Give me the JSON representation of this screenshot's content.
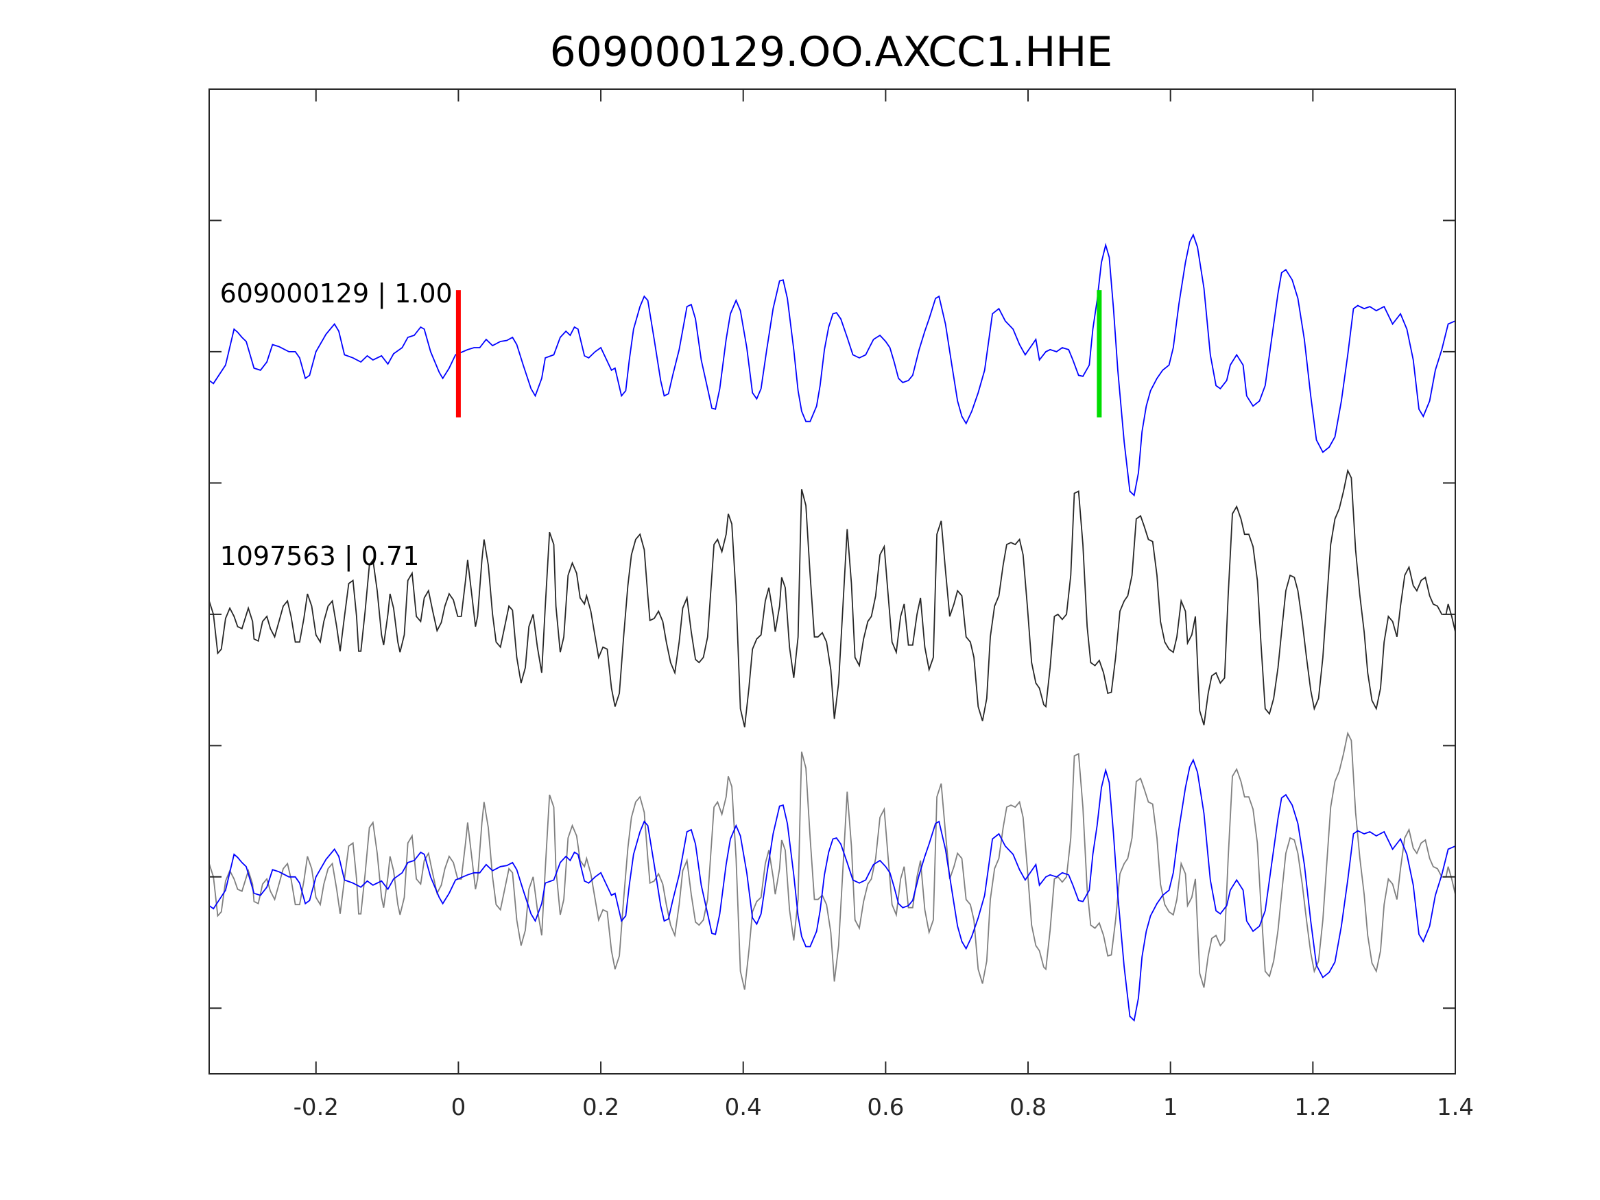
{
  "chart_data": {
    "type": "line",
    "title": "609000129.OO.AXCC1.HHE",
    "xlabel": "",
    "ylabel": "",
    "xlim": [
      -0.35,
      1.4
    ],
    "ylim": [
      0,
      960
    ],
    "xticks": [
      -0.2,
      0,
      0.2,
      0.4,
      0.6,
      0.8,
      1,
      1.2,
      1.4
    ],
    "xtick_labels": [
      "-0.2",
      "0",
      "0.2",
      "0.4",
      "0.6",
      "0.8",
      "1",
      "1.2",
      "1.4"
    ],
    "yticks": [
      64,
      192,
      320,
      448,
      576,
      704,
      832
    ],
    "grid": false,
    "colors": {
      "template": "#0000ff",
      "match": "#262626",
      "match_overlay": "#7f7f7f",
      "pick_p": "#ff0000",
      "pick_s": "#00dd00",
      "axis": "#262626"
    },
    "labels": [
      {
        "text": "609000129 | 1.00",
        "t": -0.335,
        "y": 752
      },
      {
        "text": "1097563 | 0.71",
        "t": -0.335,
        "y": 496
      }
    ],
    "picks": [
      {
        "name": "P",
        "t": 0.0,
        "y_range": [
          640,
          764
        ],
        "color": "#ff0000"
      },
      {
        "name": "S",
        "t": 0.9,
        "y_range": [
          640,
          764
        ],
        "color": "#00dd00"
      }
    ],
    "series": [
      {
        "name": "609000129 template",
        "offset": 704,
        "overlay_offset": 192,
        "t": [
          -0.35,
          -0.344,
          -0.327,
          -0.315,
          -0.31,
          -0.304,
          -0.298,
          -0.287,
          -0.278,
          -0.269,
          -0.261,
          -0.252,
          -0.238,
          -0.229,
          -0.223,
          -0.215,
          -0.209,
          -0.2,
          -0.186,
          -0.174,
          -0.168,
          -0.16,
          -0.148,
          -0.137,
          -0.128,
          -0.12,
          -0.108,
          -0.099,
          -0.091,
          -0.079,
          -0.071,
          -0.062,
          -0.053,
          -0.048,
          -0.039,
          -0.027,
          -0.022,
          -0.013,
          -0.004,
          0.013,
          0.022,
          0.03,
          0.039,
          0.048,
          0.059,
          0.068,
          0.076,
          0.082,
          0.091,
          0.102,
          0.108,
          0.117,
          0.122,
          0.134,
          0.143,
          0.151,
          0.157,
          0.163,
          0.168,
          0.177,
          0.183,
          0.192,
          0.2,
          0.215,
          0.22,
          0.229,
          0.235,
          0.24,
          0.246,
          0.255,
          0.261,
          0.266,
          0.275,
          0.284,
          0.289,
          0.295,
          0.301,
          0.31,
          0.321,
          0.327,
          0.333,
          0.341,
          0.35,
          0.356,
          0.361,
          0.367,
          0.376,
          0.382,
          0.39,
          0.396,
          0.405,
          0.413,
          0.419,
          0.425,
          0.433,
          0.442,
          0.451,
          0.456,
          0.462,
          0.471,
          0.477,
          0.482,
          0.488,
          0.494,
          0.503,
          0.508,
          0.514,
          0.52,
          0.526,
          0.531,
          0.537,
          0.546,
          0.554,
          0.563,
          0.572,
          0.577,
          0.583,
          0.592,
          0.6,
          0.606,
          0.612,
          0.618,
          0.624,
          0.632,
          0.638,
          0.647,
          0.655,
          0.661,
          0.67,
          0.675,
          0.684,
          0.693,
          0.701,
          0.707,
          0.713,
          0.721,
          0.73,
          0.739,
          0.744,
          0.75,
          0.759,
          0.768,
          0.779,
          0.788,
          0.796,
          0.805,
          0.811,
          0.816,
          0.825,
          0.831,
          0.84,
          0.848,
          0.857,
          0.863,
          0.871,
          0.877,
          0.886,
          0.891,
          0.897,
          0.903,
          0.909,
          0.914,
          0.92,
          0.926,
          0.935,
          0.943,
          0.949,
          0.955,
          0.96,
          0.966,
          0.972,
          0.981,
          0.989,
          0.998,
          1.004,
          1.012,
          1.021,
          1.027,
          1.032,
          1.038,
          1.047,
          1.056,
          1.064,
          1.07,
          1.079,
          1.084,
          1.093,
          1.102,
          1.107,
          1.116,
          1.125,
          1.133,
          1.142,
          1.151,
          1.156,
          1.162,
          1.171,
          1.179,
          1.188,
          1.197,
          1.205,
          1.214,
          1.223,
          1.231,
          1.24,
          1.249,
          1.257,
          1.263,
          1.272,
          1.28,
          1.289,
          1.3,
          1.312,
          1.323,
          1.332,
          1.341,
          1.349,
          1.355,
          1.364,
          1.372,
          1.381,
          1.39,
          1.4
        ],
        "amp": [
          -28,
          -31,
          -13,
          22,
          19,
          14,
          10,
          -16,
          -18,
          -10,
          7,
          5,
          0,
          0,
          -6,
          -26,
          -23,
          0,
          17,
          27,
          20,
          -3,
          -6,
          -10,
          -4,
          -8,
          -4,
          -12,
          -2,
          4,
          14,
          16,
          24,
          22,
          0,
          -20,
          -26,
          -16,
          -3,
          2,
          4,
          4,
          12,
          6,
          10,
          11,
          14,
          7,
          -13,
          -36,
          -43,
          -26,
          -6,
          -3,
          14,
          20,
          16,
          24,
          22,
          -4,
          -6,
          0,
          4,
          -18,
          -16,
          -43,
          -38,
          -8,
          22,
          44,
          54,
          50,
          12,
          -28,
          -43,
          -41,
          -23,
          2,
          44,
          46,
          32,
          -8,
          -36,
          -55,
          -56,
          -36,
          12,
          37,
          50,
          40,
          4,
          -40,
          -46,
          -36,
          2,
          42,
          69,
          70,
          52,
          2,
          -38,
          -58,
          -68,
          -68,
          -53,
          -33,
          2,
          24,
          37,
          38,
          32,
          14,
          -3,
          -6,
          -3,
          4,
          12,
          16,
          10,
          4,
          -10,
          -26,
          -30,
          -28,
          -23,
          2,
          20,
          32,
          52,
          54,
          27,
          -13,
          -48,
          -63,
          -70,
          -58,
          -40,
          -18,
          7,
          37,
          42,
          30,
          22,
          7,
          -3,
          6,
          12,
          -8,
          0,
          2,
          0,
          4,
          2,
          -8,
          -23,
          -24,
          -13,
          22,
          50,
          87,
          104,
          92,
          42,
          -18,
          -88,
          -136,
          -140,
          -118,
          -78,
          -53,
          -38,
          -26,
          -18,
          -13,
          4,
          47,
          87,
          107,
          114,
          102,
          62,
          -3,
          -33,
          -36,
          -28,
          -13,
          -3,
          -13,
          -43,
          -53,
          -48,
          -33,
          12,
          57,
          77,
          80,
          70,
          52,
          12,
          -43,
          -86,
          -98,
          -93,
          -83,
          -48,
          -3,
          42,
          45,
          42,
          44,
          40,
          44,
          27,
          37,
          22,
          -8,
          -56,
          -63,
          -48,
          -18,
          2,
          27,
          30
        ]
      },
      {
        "name": "1097563 match",
        "offset": 448,
        "overlay_offset": 192,
        "t": [
          -0.35,
          -0.344,
          -0.338,
          -0.333,
          -0.327,
          -0.321,
          -0.315,
          -0.31,
          -0.304,
          -0.295,
          -0.289,
          -0.287,
          -0.281,
          -0.275,
          -0.269,
          -0.264,
          -0.258,
          -0.252,
          -0.246,
          -0.24,
          -0.235,
          -0.229,
          -0.223,
          -0.217,
          -0.212,
          -0.206,
          -0.2,
          -0.194,
          -0.189,
          -0.183,
          -0.177,
          -0.171,
          -0.166,
          -0.16,
          -0.154,
          -0.148,
          -0.143,
          -0.14,
          -0.137,
          -0.131,
          -0.125,
          -0.12,
          -0.114,
          -0.108,
          -0.105,
          -0.099,
          -0.096,
          -0.091,
          -0.085,
          -0.082,
          -0.076,
          -0.071,
          -0.065,
          -0.059,
          -0.053,
          -0.048,
          -0.042,
          -0.036,
          -0.03,
          -0.024,
          -0.019,
          -0.013,
          -0.007,
          -0.001,
          0.004,
          0.01,
          0.013,
          0.019,
          0.024,
          0.027,
          0.033,
          0.036,
          0.042,
          0.048,
          0.053,
          0.059,
          0.065,
          0.071,
          0.076,
          0.082,
          0.088,
          0.094,
          0.099,
          0.105,
          0.111,
          0.117,
          0.122,
          0.128,
          0.134,
          0.137,
          0.143,
          0.148,
          0.154,
          0.16,
          0.166,
          0.171,
          0.177,
          0.18,
          0.186,
          0.192,
          0.197,
          0.203,
          0.209,
          0.215,
          0.22,
          0.226,
          0.232,
          0.238,
          0.243,
          0.249,
          0.255,
          0.261,
          0.266,
          0.269,
          0.275,
          0.281,
          0.287,
          0.292,
          0.298,
          0.304,
          0.31,
          0.315,
          0.321,
          0.327,
          0.333,
          0.338,
          0.344,
          0.35,
          0.356,
          0.359,
          0.364,
          0.37,
          0.376,
          0.379,
          0.384,
          0.39,
          0.396,
          0.402,
          0.408,
          0.413,
          0.419,
          0.425,
          0.431,
          0.436,
          0.442,
          0.445,
          0.451,
          0.454,
          0.459,
          0.465,
          0.471,
          0.477,
          0.48,
          0.482,
          0.488,
          0.494,
          0.5,
          0.505,
          0.511,
          0.517,
          0.523,
          0.528,
          0.534,
          0.54,
          0.546,
          0.552,
          0.557,
          0.563,
          0.569,
          0.575,
          0.58,
          0.586,
          0.592,
          0.598,
          0.603,
          0.609,
          0.615,
          0.621,
          0.626,
          0.632,
          0.638,
          0.644,
          0.649,
          0.655,
          0.661,
          0.667,
          0.672,
          0.678,
          0.684,
          0.69,
          0.696,
          0.701,
          0.707,
          0.713,
          0.719,
          0.724,
          0.73,
          0.736,
          0.742,
          0.747,
          0.753,
          0.759,
          0.765,
          0.77,
          0.776,
          0.782,
          0.788,
          0.793,
          0.799,
          0.805,
          0.811,
          0.816,
          0.822,
          0.825,
          0.831,
          0.837,
          0.842,
          0.848,
          0.854,
          0.86,
          0.865,
          0.871,
          0.877,
          0.883,
          0.888,
          0.894,
          0.9,
          0.906,
          0.912,
          0.917,
          0.923,
          0.929,
          0.935,
          0.94,
          0.946,
          0.952,
          0.958,
          0.963,
          0.969,
          0.975,
          0.981,
          0.986,
          0.992,
          0.998,
          1.004,
          1.009,
          1.015,
          1.021,
          1.024,
          1.03,
          1.035,
          1.041,
          1.047,
          1.053,
          1.058,
          1.064,
          1.07,
          1.076,
          1.081,
          1.087,
          1.093,
          1.099,
          1.104,
          1.11,
          1.116,
          1.122,
          1.127,
          1.133,
          1.139,
          1.145,
          1.151,
          1.156,
          1.162,
          1.168,
          1.174,
          1.179,
          1.185,
          1.191,
          1.197,
          1.202,
          1.208,
          1.214,
          1.22,
          1.225,
          1.231,
          1.237,
          1.243,
          1.249,
          1.254,
          1.26,
          1.266,
          1.272,
          1.277,
          1.283,
          1.289,
          1.295,
          1.3,
          1.306,
          1.312,
          1.318,
          1.323,
          1.329,
          1.335,
          1.341,
          1.346,
          1.352,
          1.358,
          1.364,
          1.369,
          1.375,
          1.381,
          1.387,
          1.39,
          1.395,
          1.4
        ],
        "amp": [
          13,
          0,
          -38,
          -34,
          -4,
          6,
          -2,
          -12,
          -14,
          6,
          -7,
          -24,
          -26,
          -7,
          -2,
          -14,
          -22,
          -7,
          8,
          13,
          -2,
          -27,
          -27,
          -4,
          20,
          8,
          -20,
          -27,
          -7,
          8,
          13,
          -12,
          -36,
          -2,
          30,
          33,
          -2,
          -36,
          -36,
          3,
          48,
          53,
          23,
          -20,
          -30,
          0,
          20,
          6,
          -27,
          -37,
          -20,
          33,
          40,
          -2,
          -7,
          16,
          23,
          3,
          -16,
          -8,
          8,
          20,
          14,
          -2,
          -2,
          33,
          53,
          18,
          -12,
          -2,
          53,
          73,
          48,
          0,
          -27,
          -32,
          -12,
          8,
          4,
          -42,
          -67,
          -52,
          -12,
          0,
          -32,
          -57,
          8,
          80,
          68,
          8,
          -37,
          -22,
          38,
          50,
          40,
          16,
          10,
          18,
          3,
          -22,
          -42,
          -32,
          -34,
          -72,
          -90,
          -77,
          -22,
          28,
          58,
          73,
          78,
          63,
          18,
          -6,
          -4,
          3,
          -7,
          -27,
          -47,
          -57,
          -27,
          6,
          16,
          -17,
          -44,
          -47,
          -42,
          -22,
          38,
          68,
          73,
          61,
          78,
          98,
          88,
          18,
          -92,
          -110,
          -72,
          -34,
          -24,
          -20,
          13,
          26,
          0,
          -17,
          8,
          36,
          26,
          -32,
          -62,
          -22,
          68,
          122,
          106,
          38,
          -22,
          -22,
          -18,
          -27,
          -54,
          -102,
          -67,
          8,
          83,
          30,
          -42,
          -50,
          -24,
          -7,
          -2,
          18,
          58,
          66,
          23,
          -27,
          -37,
          -2,
          10,
          -30,
          -30,
          0,
          16,
          -32,
          -54,
          -42,
          78,
          91,
          43,
          -2,
          10,
          23,
          18,
          -22,
          -27,
          -42,
          -90,
          -104,
          -82,
          -22,
          8,
          18,
          48,
          68,
          70,
          68,
          73,
          58,
          8,
          -47,
          -67,
          -72,
          -88,
          -90,
          -52,
          -2,
          0,
          -5,
          0,
          38,
          118,
          120,
          68,
          -12,
          -47,
          -50,
          -45,
          -57,
          -77,
          -76,
          -42,
          3,
          13,
          18,
          38,
          93,
          96,
          86,
          73,
          71,
          38,
          -7,
          -27,
          -34,
          -37,
          -22,
          13,
          3,
          -28,
          -20,
          -2,
          -94,
          -108,
          -77,
          -60,
          -57,
          -67,
          -62,
          18,
          98,
          105,
          93,
          78,
          78,
          66,
          33,
          -27,
          -92,
          -97,
          -82,
          -52,
          -17,
          23,
          38,
          36,
          23,
          -7,
          -42,
          -74,
          -92,
          -82,
          -42,
          18,
          68,
          93,
          103,
          120,
          140,
          133,
          63,
          18,
          -17,
          -57,
          -84,
          -92,
          -72,
          -27,
          -2,
          -7,
          -22,
          8,
          38,
          46,
          28,
          23,
          33,
          36,
          18,
          10,
          8,
          0,
          0,
          10,
          -2,
          -17
        ]
      }
    ]
  }
}
